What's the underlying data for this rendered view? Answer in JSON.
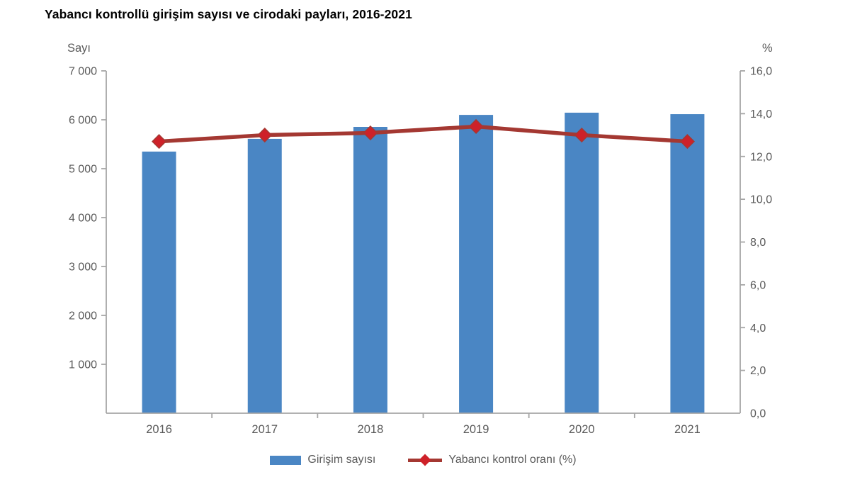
{
  "title": "Yabancı kontrollü girişim sayısı ve cirodaki payları, 2016-2021",
  "colors": {
    "bar": "#4A86C4",
    "line": "#A43832",
    "marker": "#CE2129",
    "axis_line": "#A6A6A6",
    "label_text": "#595959",
    "title_text": "#000000"
  },
  "chart_data": {
    "type": "bar",
    "subtype": "combo-bar-line-dual-axis",
    "title": "Yabancı kontrollü girişim sayısı ve cirodaki payları, 2016-2021",
    "categories": [
      "2016",
      "2017",
      "2018",
      "2019",
      "2020",
      "2021"
    ],
    "series": [
      {
        "name": "Girişim sayısı",
        "type": "bar",
        "axis": "left",
        "values": [
          5350,
          5610,
          5855,
          6100,
          6145,
          6115
        ]
      },
      {
        "name": "Yabancı kontrol oranı (%)",
        "type": "line",
        "marker": "diamond",
        "axis": "right",
        "values": [
          12.7,
          13.0,
          13.1,
          13.4,
          13.0,
          12.7
        ]
      }
    ],
    "left_axis": {
      "title": "Sayı",
      "min": 0,
      "max": 7000,
      "tick_values": [
        1000,
        2000,
        3000,
        4000,
        5000,
        6000,
        7000
      ],
      "tick_labels": [
        "1 000",
        "2 000",
        "3 000",
        "4 000",
        "5 000",
        "6 000",
        "7 000"
      ]
    },
    "right_axis": {
      "title": "%",
      "min": 0,
      "max": 16,
      "tick_values": [
        0,
        2,
        4,
        6,
        8,
        10,
        12,
        14,
        16
      ],
      "tick_labels": [
        "0,0",
        "2,0",
        "4,0",
        "6,0",
        "8,0",
        "10,0",
        "12,0",
        "14,0",
        "16,0"
      ]
    },
    "grid": false,
    "legend_position": "bottom"
  },
  "legend": {
    "items": [
      {
        "label": "Girişim sayısı",
        "swatch": "bar"
      },
      {
        "label": "Yabancı kontrol oranı (%)",
        "swatch": "line-diamond"
      }
    ]
  }
}
